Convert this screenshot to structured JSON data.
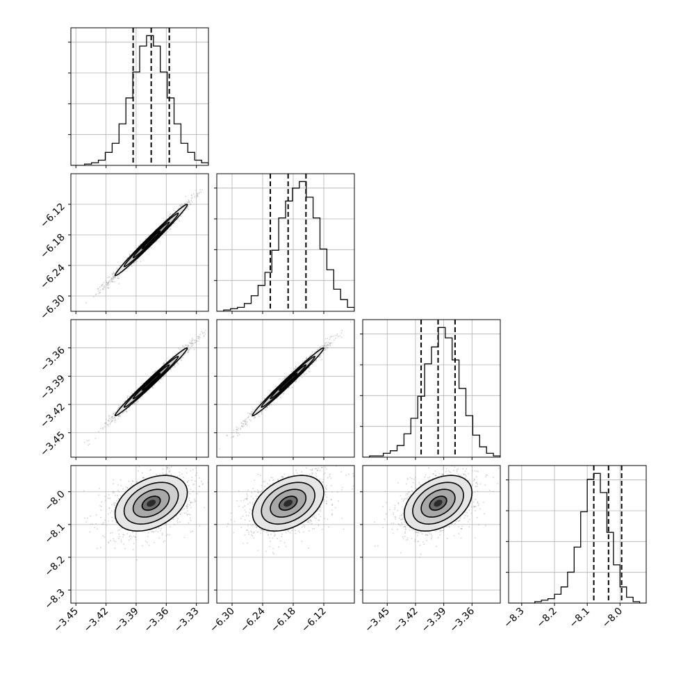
{
  "chart_data": {
    "type": "corner",
    "parameters": [
      {
        "range": [
          -3.455,
          -3.318
        ],
        "ticks": [
          -3.45,
          -3.42,
          -3.39,
          -3.36,
          -3.33
        ],
        "tick_labels": [
          "−3.45",
          "−3.42",
          "−3.39",
          "−3.36",
          "−3.33"
        ],
        "quantiles": [
          -3.393,
          -3.375,
          -3.357
        ],
        "histogram": [
          0,
          0,
          1,
          2,
          4,
          10,
          17,
          32,
          52,
          72,
          92,
          100,
          92,
          72,
          52,
          32,
          17,
          10,
          4,
          2
        ]
      },
      {
        "range": [
          -6.33,
          -6.06
        ],
        "ticks": [
          -6.3,
          -6.24,
          -6.18,
          -6.12
        ],
        "tick_labels": [
          "−6.30",
          "−6.24",
          "−6.18",
          "−6.12"
        ],
        "quantiles": [
          -6.225,
          -6.19,
          -6.155
        ],
        "histogram": [
          0,
          1,
          2,
          3,
          6,
          12,
          20,
          30,
          47,
          72,
          85,
          95,
          100,
          88,
          72,
          48,
          32,
          17,
          9,
          3
        ]
      },
      {
        "range": [
          -3.476,
          -3.33
        ],
        "ticks": [
          -3.45,
          -3.42,
          -3.39,
          -3.36
        ],
        "tick_labels": [
          "−3.45",
          "−3.42",
          "−3.39",
          "−3.36"
        ],
        "quantiles": [
          -3.414,
          -3.396,
          -3.378
        ],
        "histogram": [
          0,
          1,
          1,
          3,
          5,
          9,
          18,
          30,
          47,
          72,
          85,
          100,
          92,
          75,
          53,
          32,
          17,
          8,
          3,
          1
        ]
      },
      {
        "range": [
          -8.34,
          -7.92
        ],
        "ticks": [
          -8.3,
          -8.2,
          -8.1,
          -8.0
        ],
        "tick_labels": [
          "−8.3",
          "−8.2",
          "−8.1",
          "−8.0"
        ],
        "quantiles": [
          -8.08,
          -8.035,
          -7.995
        ],
        "histogram": [
          0,
          0,
          0,
          0,
          1,
          2,
          3,
          6,
          11,
          21,
          38,
          62,
          84,
          88,
          75,
          48,
          26,
          11,
          4,
          1,
          0
        ]
      }
    ],
    "correlations": [
      [
        1.0,
        0.99,
        0.99,
        0.38
      ],
      [
        0.99,
        1.0,
        0.99,
        0.38
      ],
      [
        0.99,
        0.99,
        1.0,
        0.38
      ],
      [
        0.38,
        0.38,
        0.38,
        1.0
      ]
    ],
    "grid": true,
    "colors": {
      "line": "#000000",
      "grid": "#b0b0b0",
      "points": "#999999"
    }
  }
}
